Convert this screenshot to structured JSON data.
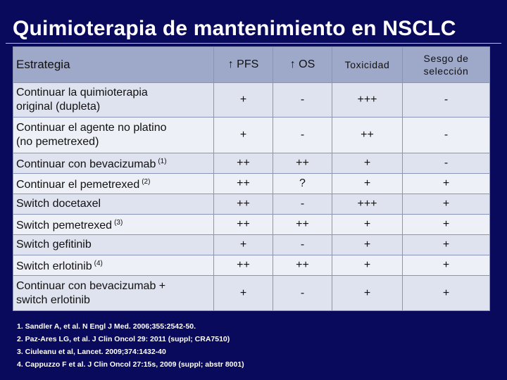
{
  "title": "Quimioterapia de mantenimiento en NSCLC",
  "table": {
    "headers": {
      "strategy": "Estrategia",
      "pfs": "↑ PFS",
      "os": "↑ OS",
      "toxicity": "Toxicidad",
      "bias_line1": "Sesgo de",
      "bias_line2": "selección"
    },
    "rows": [
      {
        "line1": "Continuar la quimioterapia",
        "line2": "original (dupleta)",
        "sup": "",
        "pfs": "+",
        "os": "-",
        "tox": "+++",
        "bias": "-"
      },
      {
        "line1": "Continuar el agente no platino",
        "line2": "(no pemetrexed)",
        "sup": "",
        "pfs": "+",
        "os": "-",
        "tox": "++",
        "bias": "-"
      },
      {
        "line1": "Continuar con bevacizumab",
        "line2": "",
        "sup": "(1)",
        "pfs": "++",
        "os": "++",
        "tox": "+",
        "bias": "-"
      },
      {
        "line1": "Continuar el pemetrexed",
        "line2": "",
        "sup": "(2)",
        "pfs": "++",
        "os": "?",
        "tox": "+",
        "bias": "+"
      },
      {
        "line1": "Switch docetaxel",
        "line2": "",
        "sup": "",
        "pfs": "++",
        "os": "-",
        "tox": "+++",
        "bias": "+"
      },
      {
        "line1": "Switch pemetrexed",
        "line2": "",
        "sup": "(3)",
        "pfs": "++",
        "os": "++",
        "tox": "+",
        "bias": "+"
      },
      {
        "line1": "Switch gefitinib",
        "line2": "",
        "sup": "",
        "pfs": "+",
        "os": "-",
        "tox": "+",
        "bias": "+"
      },
      {
        "line1": "Switch erlotinib",
        "line2": "",
        "sup": "(4)",
        "pfs": "++",
        "os": "++",
        "tox": "+",
        "bias": "+"
      },
      {
        "line1": "Continuar con bevacizumab +",
        "line2": "switch erlotinib",
        "sup": "",
        "pfs": "+",
        "os": "-",
        "tox": "+",
        "bias": "+"
      }
    ]
  },
  "references": [
    "1. Sandler A, et al. N Engl J Med. 2006;355:2542-50.",
    "2. Paz-Ares LG, et al. J Clin Oncol 29: 2011 (suppl; CRA7510)",
    "3. Ciuleanu et al, Lancet. 2009;374:1432-40",
    "4. Cappuzzo F et al. J Clin Oncol 27:15s, 2009 (suppl; abstr 8001)"
  ]
}
